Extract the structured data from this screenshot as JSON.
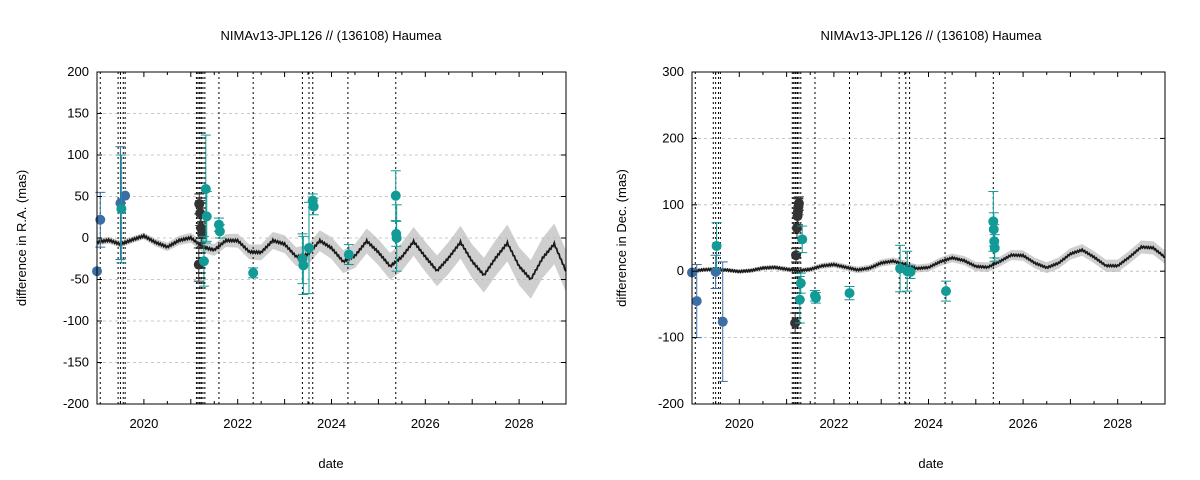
{
  "chart_data": [
    {
      "type": "scatter",
      "title": "NIMAv13-JPL126 // (136108) Haumea",
      "xlabel": "date",
      "ylabel": "difference in R.A. (mas)",
      "xlim": [
        2019.0,
        2029.0
      ],
      "ylim": [
        -200,
        200
      ],
      "xticks": [
        2020,
        2022,
        2024,
        2026,
        2028
      ],
      "yticks": [
        -200,
        -150,
        -100,
        -50,
        0,
        50,
        100,
        150,
        200
      ],
      "grid": true,
      "epoch_lines": [
        2019.07,
        2019.45,
        2019.5,
        2019.56,
        2019.6,
        2021.12,
        2021.15,
        2021.18,
        2021.2,
        2021.23,
        2021.26,
        2021.3,
        2021.6,
        2022.33,
        2023.38,
        2023.52,
        2023.6,
        2024.35,
        2025.37
      ],
      "model_curve": {
        "name": "NIMAv13-JPL126 difference",
        "x": [
          2019.0,
          2019.25,
          2019.5,
          2019.75,
          2020.0,
          2020.25,
          2020.5,
          2020.75,
          2021.0,
          2021.25,
          2021.5,
          2021.75,
          2022.0,
          2022.25,
          2022.5,
          2022.75,
          2023.0,
          2023.25,
          2023.5,
          2023.75,
          2024.0,
          2024.25,
          2024.5,
          2024.75,
          2025.0,
          2025.25,
          2025.5,
          2025.75,
          2026.0,
          2026.25,
          2026.5,
          2026.75,
          2027.0,
          2027.25,
          2027.5,
          2027.75,
          2028.0,
          2028.25,
          2028.5,
          2028.75,
          2029.0
        ],
        "y": [
          -5.0,
          -2.7,
          -7.5,
          -2.2,
          2.4,
          -5.4,
          -10.8,
          -2.9,
          0.3,
          -10.8,
          -14.4,
          -3.0,
          -3.2,
          -16.8,
          -17.4,
          -3.0,
          -7.4,
          -22.7,
          -19.8,
          -3.2,
          -12.1,
          -28.5,
          -21.6,
          -3.6,
          -17.2,
          -34.1,
          -22.8,
          -4.2,
          -22.6,
          -39.6,
          -23.7,
          -5.0,
          -28.2,
          -44.8,
          -24.1,
          -6.0,
          -34.0,
          -49.9,
          -24.3,
          -7.1,
          -40.0
        ],
        "band": [
          4.0,
          4.0,
          4.0,
          4.0,
          4.0,
          4.5,
          5.0,
          5.5,
          6.0,
          6.6,
          7.2,
          7.8,
          8.4,
          9.0,
          9.6,
          10.2,
          10.8,
          11.4,
          12.0,
          12.6,
          13.2,
          13.8,
          14.4,
          15.0,
          15.6,
          16.2,
          16.8,
          17.4,
          18.0,
          18.6,
          19.2,
          19.8,
          20.4,
          21.0,
          21.6,
          22.2,
          22.8,
          23.4,
          24.0,
          24.6,
          25.2
        ]
      },
      "series": [
        {
          "name": "blue",
          "color": "#3a6ea5",
          "points": [
            {
              "x": 2019.0,
              "y": -40,
              "err": 0
            },
            {
              "x": 2019.07,
              "y": 22,
              "err": 33
            },
            {
              "x": 2019.5,
              "y": 42,
              "err": 68
            },
            {
              "x": 2019.6,
              "y": 51,
              "err": 0
            }
          ]
        },
        {
          "name": "gray",
          "color": "#333333",
          "points": [
            {
              "x": 2021.17,
              "y": -32,
              "err": 20
            },
            {
              "x": 2021.18,
              "y": 41,
              "err": 12
            },
            {
              "x": 2021.2,
              "y": 30,
              "err": 15
            },
            {
              "x": 2021.22,
              "y": 12,
              "err": 18
            },
            {
              "x": 2021.24,
              "y": 5,
              "err": 15
            }
          ]
        },
        {
          "name": "teal",
          "color": "#129a96",
          "points": [
            {
              "x": 2019.52,
              "y": 35,
              "err": 65
            },
            {
              "x": 2021.28,
              "y": -28,
              "err": 30
            },
            {
              "x": 2021.32,
              "y": 59,
              "err": 65
            },
            {
              "x": 2021.34,
              "y": 26,
              "err": 30
            },
            {
              "x": 2021.6,
              "y": 16,
              "err": 8
            },
            {
              "x": 2021.62,
              "y": 8,
              "err": 8
            },
            {
              "x": 2022.33,
              "y": -42,
              "err": 6
            },
            {
              "x": 2023.38,
              "y": -25,
              "err": 30
            },
            {
              "x": 2023.4,
              "y": -33,
              "err": 35
            },
            {
              "x": 2023.52,
              "y": -12,
              "err": 55
            },
            {
              "x": 2023.6,
              "y": 45,
              "err": 8
            },
            {
              "x": 2023.62,
              "y": 38,
              "err": 10
            },
            {
              "x": 2024.37,
              "y": -20,
              "err": 12
            },
            {
              "x": 2025.37,
              "y": 51,
              "err": 30
            },
            {
              "x": 2025.38,
              "y": 5,
              "err": 15
            },
            {
              "x": 2025.39,
              "y": 0,
              "err": 40
            }
          ]
        }
      ]
    },
    {
      "type": "scatter",
      "title": "NIMAv13-JPL126 // (136108) Haumea",
      "xlabel": "date",
      "ylabel": "difference in Dec. (mas)",
      "xlim": [
        2019.0,
        2029.0
      ],
      "ylim": [
        -200,
        300
      ],
      "xticks": [
        2020,
        2022,
        2024,
        2026,
        2028
      ],
      "yticks": [
        -200,
        -100,
        0,
        100,
        200,
        300
      ],
      "grid": true,
      "epoch_lines": [
        2019.07,
        2019.45,
        2019.5,
        2019.56,
        2019.6,
        2021.12,
        2021.15,
        2021.18,
        2021.2,
        2021.23,
        2021.26,
        2021.3,
        2021.6,
        2022.33,
        2023.38,
        2023.52,
        2023.6,
        2024.35,
        2025.37
      ],
      "model_curve": {
        "name": "NIMAv13-JPL126 difference",
        "x": [
          2019.0,
          2019.25,
          2019.5,
          2019.75,
          2020.0,
          2020.25,
          2020.5,
          2020.75,
          2021.0,
          2021.25,
          2021.5,
          2021.75,
          2022.0,
          2022.25,
          2022.5,
          2022.75,
          2023.0,
          2023.25,
          2023.5,
          2023.75,
          2024.0,
          2024.25,
          2024.5,
          2024.75,
          2025.0,
          2025.25,
          2025.5,
          2025.75,
          2026.0,
          2026.25,
          2026.5,
          2026.75,
          2027.0,
          2027.25,
          2027.5,
          2027.75,
          2028.0,
          2028.25,
          2028.5,
          2028.75,
          2029.0
        ],
        "y": [
          0.0,
          2.2,
          3.0,
          1.6,
          -0.5,
          1.0,
          4.8,
          5.8,
          3.0,
          0.7,
          2.8,
          8.0,
          10.0,
          5.9,
          1.9,
          4.6,
          12.4,
          15.2,
          10.3,
          4.0,
          5.6,
          14.3,
          20.1,
          16.1,
          7.2,
          5.9,
          14.4,
          24.3,
          23.6,
          12.2,
          5.3,
          12.2,
          26.1,
          32.0,
          21.2,
          8.3,
          8.1,
          21.4,
          36.4,
          35.2,
          21.0
        ],
        "band": [
          3.0,
          3.0,
          3.0,
          3.0,
          3.0,
          3.2,
          3.4,
          3.6,
          3.8,
          4.0,
          4.2,
          4.4,
          4.6,
          4.8,
          5.0,
          5.2,
          5.4,
          5.6,
          5.8,
          6.0,
          6.2,
          6.4,
          6.6,
          6.8,
          7.0,
          7.2,
          7.4,
          7.6,
          7.8,
          8.0,
          8.2,
          8.4,
          8.6,
          8.8,
          9.0,
          9.2,
          9.4,
          9.6,
          9.8,
          10.0,
          10.2
        ]
      },
      "series": [
        {
          "name": "blue",
          "color": "#3a6ea5",
          "points": [
            {
              "x": 2019.0,
              "y": -2,
              "err": 0
            },
            {
              "x": 2019.1,
              "y": -45,
              "err": 55
            },
            {
              "x": 2019.5,
              "y": -1,
              "err": 25
            },
            {
              "x": 2019.65,
              "y": -76,
              "err": 90
            }
          ]
        },
        {
          "name": "gray",
          "color": "#333333",
          "points": [
            {
              "x": 2021.18,
              "y": -78,
              "err": 15
            },
            {
              "x": 2021.2,
              "y": 24,
              "err": 10
            },
            {
              "x": 2021.22,
              "y": 65,
              "err": 15
            },
            {
              "x": 2021.23,
              "y": 83,
              "err": 20
            },
            {
              "x": 2021.24,
              "y": 90,
              "err": 20
            },
            {
              "x": 2021.25,
              "y": 97,
              "err": 12
            },
            {
              "x": 2021.26,
              "y": 102,
              "err": 10
            }
          ]
        },
        {
          "name": "teal",
          "color": "#129a96",
          "points": [
            {
              "x": 2019.52,
              "y": 38,
              "err": 35
            },
            {
              "x": 2021.28,
              "y": -43,
              "err": 35
            },
            {
              "x": 2021.3,
              "y": -18,
              "err": 15
            },
            {
              "x": 2021.33,
              "y": 48,
              "err": 20
            },
            {
              "x": 2021.6,
              "y": -37,
              "err": 8
            },
            {
              "x": 2021.62,
              "y": -40,
              "err": 8
            },
            {
              "x": 2022.33,
              "y": -33,
              "err": 10
            },
            {
              "x": 2023.4,
              "y": 4,
              "err": 35
            },
            {
              "x": 2023.55,
              "y": 0,
              "err": 30
            },
            {
              "x": 2023.62,
              "y": -1,
              "err": 10
            },
            {
              "x": 2024.37,
              "y": -30,
              "err": 15
            },
            {
              "x": 2025.37,
              "y": 75,
              "err": 45
            },
            {
              "x": 2025.38,
              "y": 63,
              "err": 25
            },
            {
              "x": 2025.39,
              "y": 45,
              "err": 25
            },
            {
              "x": 2025.4,
              "y": 35,
              "err": 20
            }
          ]
        }
      ]
    }
  ]
}
